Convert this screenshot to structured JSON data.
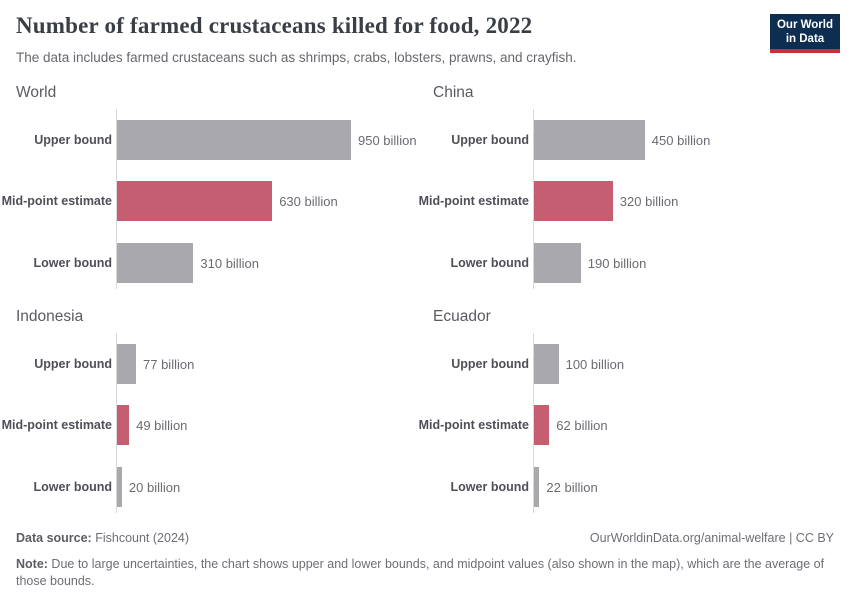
{
  "header": {
    "title": "Number of farmed crustaceans killed for food, 2022",
    "subtitle": "The data includes farmed crustaceans such as shrimps, crabs, lobsters, prawns, and crayfish.",
    "logo": {
      "line1": "Our World",
      "line2": "in Data"
    }
  },
  "colors": {
    "bar_gray": "#a8a8ad",
    "bar_red": "#c55e70",
    "logo_navy": "#0d2d51",
    "logo_red": "#cb2d3a",
    "axis_line": "#d9d9dc"
  },
  "chart_data": {
    "type": "bar",
    "orientation": "horizontal",
    "unit": "billion",
    "grid": false,
    "legend": "none",
    "xlim_billion": [
      0,
      950
    ],
    "categories": [
      "Upper bound",
      "Mid-point estimate",
      "Lower bound"
    ],
    "highlighted_category": "Mid-point estimate",
    "panels": [
      {
        "entity": "World",
        "values": [
          950,
          630,
          310
        ],
        "value_labels": [
          "950 billion",
          "630 billion",
          "310 billion"
        ]
      },
      {
        "entity": "China",
        "values": [
          450,
          320,
          190
        ],
        "value_labels": [
          "450 billion",
          "320 billion",
          "190 billion"
        ]
      },
      {
        "entity": "Indonesia",
        "values": [
          77,
          49,
          20
        ],
        "value_labels": [
          "77 billion",
          "49 billion",
          "20 billion"
        ]
      },
      {
        "entity": "Ecuador",
        "values": [
          100,
          62,
          22
        ],
        "value_labels": [
          "100 billion",
          "62 billion",
          "22 billion"
        ]
      }
    ]
  },
  "footer": {
    "datasource_label": "Data source:",
    "datasource_value": " Fishcount (2024)",
    "attribution": "OurWorldinData.org/animal-welfare | CC BY",
    "note_label": "Note:",
    "note_value": " Due to large uncertainties, the chart shows upper and lower bounds, and midpoint values (also shown in the map), which are the average of those bounds."
  }
}
